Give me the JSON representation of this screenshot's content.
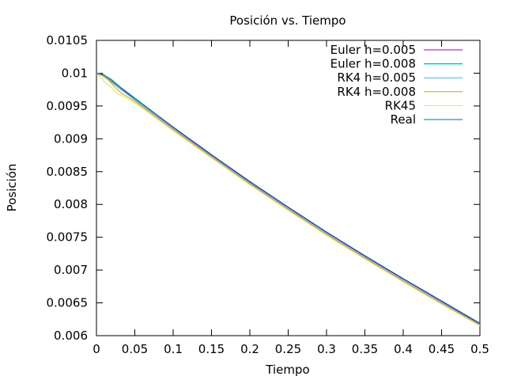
{
  "chart_data": {
    "type": "line",
    "title": "Posición vs. Tiempo",
    "xlabel": "Tiempo",
    "ylabel": "Posición",
    "xlim": [
      0,
      0.5
    ],
    "ylim": [
      0.006,
      0.0105
    ],
    "xticks": [
      "0",
      "0.05",
      "0.1",
      "0.15",
      "0.2",
      "0.25",
      "0.3",
      "0.35",
      "0.4",
      "0.45",
      "0.5"
    ],
    "yticks": [
      "0.006",
      "0.0065",
      "0.007",
      "0.0075",
      "0.008",
      "0.0085",
      "0.009",
      "0.0095",
      "0.01",
      "0.0105"
    ],
    "grid": false,
    "legend_position": "top-right",
    "series": [
      {
        "name": "Euler h=0.005",
        "color": "#9400d3",
        "x": [
          0,
          0.005,
          0.01,
          0.02,
          0.03,
          0.05,
          0.1,
          0.15,
          0.2,
          0.25,
          0.3,
          0.35,
          0.4,
          0.45,
          0.5
        ],
        "y": [
          0.01,
          0.01,
          0.00997,
          0.00988,
          0.00978,
          0.00961,
          0.00917,
          0.00875,
          0.00834,
          0.00795,
          0.00757,
          0.00721,
          0.00686,
          0.00652,
          0.00618
        ]
      },
      {
        "name": "Euler h=0.008",
        "color": "#009e73",
        "x": [
          0,
          0.008,
          0.016,
          0.024,
          0.032,
          0.05,
          0.1,
          0.15,
          0.2,
          0.25,
          0.3,
          0.35,
          0.4,
          0.45,
          0.5
        ],
        "y": [
          0.01,
          0.00999,
          0.00992,
          0.00984,
          0.00975,
          0.00961,
          0.00918,
          0.00876,
          0.00835,
          0.00796,
          0.00758,
          0.00722,
          0.00687,
          0.00653,
          0.00619
        ]
      },
      {
        "name": "RK4 h=0.005",
        "color": "#56b4e9",
        "x": [
          0,
          0.005,
          0.01,
          0.02,
          0.03,
          0.05,
          0.1,
          0.15,
          0.2,
          0.25,
          0.3,
          0.35,
          0.4,
          0.45,
          0.5
        ],
        "y": [
          0.01,
          0.00999,
          0.00995,
          0.00986,
          0.00977,
          0.00959,
          0.00915,
          0.00873,
          0.00832,
          0.00793,
          0.00755,
          0.00719,
          0.00684,
          0.0065,
          0.00617
        ]
      },
      {
        "name": "RK4 h=0.008",
        "color": "#e69f00",
        "x": [
          0,
          0.008,
          0.016,
          0.024,
          0.032,
          0.05,
          0.1,
          0.15,
          0.2,
          0.25,
          0.3,
          0.35,
          0.4,
          0.45,
          0.5
        ],
        "y": [
          0.01,
          0.00996,
          0.00989,
          0.00979,
          0.0097,
          0.00957,
          0.00914,
          0.00872,
          0.00831,
          0.00792,
          0.00754,
          0.00718,
          0.00683,
          0.00649,
          0.00616
        ]
      },
      {
        "name": "RK45",
        "color": "#f0e442",
        "x": [
          0,
          0.006,
          0.012,
          0.02,
          0.028,
          0.036,
          0.05,
          0.1,
          0.15,
          0.2,
          0.25,
          0.3,
          0.35,
          0.4,
          0.45,
          0.5
        ],
        "y": [
          0.01,
          0.00993,
          0.00985,
          0.00978,
          0.00968,
          0.00964,
          0.00955,
          0.00912,
          0.00871,
          0.0083,
          0.00791,
          0.00753,
          0.00717,
          0.00682,
          0.00648,
          0.00615
        ]
      },
      {
        "name": "Real",
        "color": "#0072b2",
        "x": [
          0,
          0.01,
          0.02,
          0.03,
          0.05,
          0.1,
          0.15,
          0.2,
          0.25,
          0.3,
          0.35,
          0.4,
          0.45,
          0.5
        ],
        "y": [
          0.01,
          0.00997,
          0.0099,
          0.0098,
          0.00962,
          0.00918,
          0.00876,
          0.00835,
          0.00796,
          0.00758,
          0.00722,
          0.00687,
          0.00653,
          0.00619
        ]
      }
    ]
  }
}
